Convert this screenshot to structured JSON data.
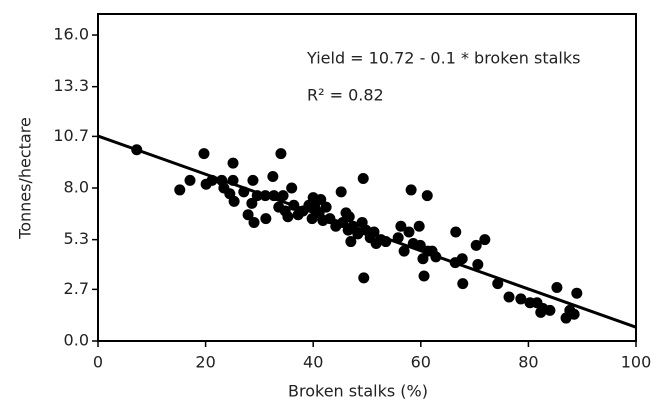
{
  "chart_data": {
    "type": "scatter",
    "x_label": "Broken stalks (%)",
    "y_label": "Tonnes/hectare",
    "annotations": [
      "Yield = 10.72 - 0.1 * broken stalks",
      "R² = 0.82"
    ],
    "fit": {
      "intercept": 10.72,
      "slope": -0.1
    },
    "color": "#000000",
    "xlim": [
      0,
      100
    ],
    "ylim": [
      0,
      17.1
    ],
    "xticks": [
      0,
      20,
      40,
      60,
      80,
      100
    ],
    "yticks": [
      {
        "value": 0,
        "label": "0.0"
      },
      2.7,
      5.3,
      {
        "value": 8,
        "label": "8.0"
      },
      10.7,
      13.3,
      {
        "value": 16,
        "label": "16.0"
      }
    ],
    "x": [
      7.2,
      15.2,
      17.1,
      19.7,
      20.1,
      21.2,
      23,
      23.4,
      24.5,
      25.1,
      25.1,
      25.3,
      27.1,
      27.9,
      28.6,
      28.8,
      29,
      29.6,
      31.1,
      31.2,
      32.5,
      32.7,
      33.6,
      34,
      34.4,
      34.8,
      35.3,
      36,
      36.4,
      37.2,
      38.1,
      39.2,
      39.8,
      40,
      40.3,
      41.1,
      41.4,
      41.8,
      42.4,
      43.1,
      44.2,
      45.2,
      45.5,
      46.1,
      46.5,
      46.7,
      47,
      47.4,
      48.3,
      49.1,
      49.3,
      49.4,
      49.8,
      50.6,
      51.3,
      51.7,
      52.6,
      53.5,
      55.8,
      56.3,
      56.9,
      57.8,
      58.2,
      58.6,
      59.7,
      59.9,
      60.4,
      60.6,
      61.2,
      61.3,
      62.1,
      62.8,
      66.4,
      66.5,
      67.7,
      67.8,
      70.3,
      70.6,
      71.9,
      74.3,
      76.4,
      78.6,
      80.3,
      81.6,
      82.3,
      82.7,
      84,
      85.3,
      87,
      87.7,
      88.5,
      89
    ],
    "values": [
      10.0,
      7.9,
      8.4,
      9.8,
      8.2,
      8.4,
      8.4,
      8.0,
      7.7,
      9.3,
      8.4,
      7.3,
      7.8,
      6.6,
      7.2,
      8.4,
      6.2,
      7.6,
      7.6,
      6.4,
      8.6,
      7.6,
      7.0,
      9.8,
      7.6,
      6.8,
      6.5,
      8.0,
      7.1,
      6.6,
      6.8,
      7.1,
      6.4,
      7.5,
      7.0,
      6.7,
      7.4,
      6.3,
      7.0,
      6.4,
      6.0,
      7.8,
      6.2,
      6.7,
      5.8,
      6.5,
      5.2,
      6.0,
      5.6,
      6.2,
      8.5,
      3.3,
      5.8,
      5.4,
      5.7,
      5.1,
      5.3,
      5.2,
      5.4,
      6.0,
      4.7,
      5.7,
      7.9,
      5.1,
      6.0,
      5.0,
      4.3,
      3.4,
      7.6,
      4.7,
      4.7,
      4.4,
      4.1,
      5.7,
      4.3,
      3.0,
      5.0,
      4.0,
      5.3,
      3.0,
      2.3,
      2.2,
      2.0,
      2.0,
      1.5,
      1.7,
      1.6,
      2.8,
      1.2,
      1.6,
      1.4,
      2.5
    ]
  }
}
